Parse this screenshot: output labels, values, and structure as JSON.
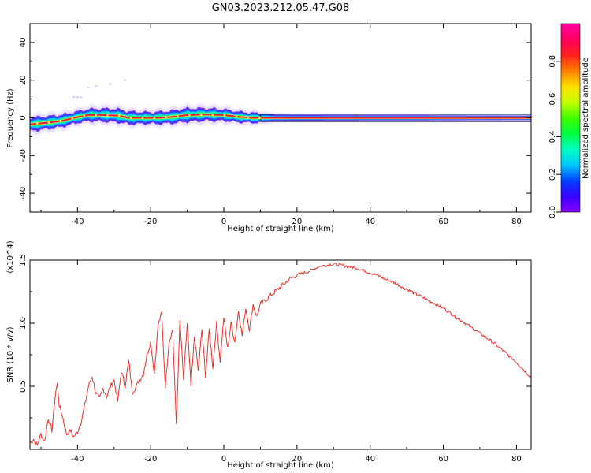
{
  "figure": {
    "title": "GN03.2023.212.05.47.G08"
  },
  "colors": {
    "snr_line": "#e8302c",
    "carrier_core": "#e21b3c",
    "axis": "#000000"
  },
  "chart_data": [
    {
      "type": "heatmap",
      "name": "spectrogram",
      "xlabel": "Height of straight line (km)",
      "ylabel": "Frequency (Hz)",
      "xlim": [
        -53,
        84
      ],
      "ylim": [
        -50,
        50
      ],
      "xticks": [
        -40,
        -20,
        0,
        20,
        40,
        60,
        80
      ],
      "yticks": [
        -40,
        -20,
        0,
        20,
        40
      ],
      "colorbar": {
        "label": "Normalized spectral amplitude",
        "range": [
          0,
          1
        ],
        "ticks": [
          "0.0",
          "0.2",
          "0.4",
          "0.6",
          "0.8"
        ],
        "colormap": [
          "#8800ff",
          "#3a00ff",
          "#0040ff",
          "#00c8ff",
          "#00ffc0",
          "#00ff40",
          "#40ff00",
          "#c8ff00",
          "#ffe000",
          "#ff8000",
          "#ff2020",
          "#ff0060",
          "#ff00a0"
        ]
      },
      "carrier": [
        [
          -53,
          -3.5
        ],
        [
          -48,
          -2.5
        ],
        [
          -44,
          -1.5
        ],
        [
          -41,
          0
        ],
        [
          -37,
          1.5
        ],
        [
          -33,
          1.5
        ],
        [
          -29,
          1.2
        ],
        [
          -26,
          0
        ],
        [
          -22,
          0
        ],
        [
          -18,
          0
        ],
        [
          -14,
          0.5
        ],
        [
          -10,
          1.5
        ],
        [
          -5,
          1.8
        ],
        [
          0,
          1.5
        ],
        [
          4,
          0.5
        ],
        [
          8,
          0
        ],
        [
          84,
          0
        ]
      ],
      "band_halfwidth_hz": [
        [
          -53,
          3.5
        ],
        [
          -40,
          3
        ],
        [
          -30,
          3.5
        ],
        [
          -20,
          3
        ],
        [
          -10,
          3.5
        ],
        [
          0,
          3
        ],
        [
          10,
          2.5
        ],
        [
          14,
          1.5
        ],
        [
          84,
          1.2
        ]
      ],
      "faint_features": [
        [
          -41,
          11
        ],
        [
          -40,
          11
        ],
        [
          -39,
          11
        ],
        [
          -37,
          16
        ],
        [
          -35,
          17
        ],
        [
          -31,
          18
        ],
        [
          -27,
          20
        ]
      ]
    },
    {
      "type": "line",
      "name": "snr",
      "xlabel": "Height of straight line (km)",
      "ylabel": "SNR (10 * v/v)",
      "y_multiplier_label": "(x10^4)",
      "xlim": [
        -53,
        84
      ],
      "ylim": [
        0,
        1.5
      ],
      "xticks": [
        -40,
        -20,
        0,
        20,
        40,
        60,
        80
      ],
      "yticks": [
        "0.5",
        "1.0",
        "1.5"
      ],
      "series": [
        {
          "values_x10e4": [
            [
              -53,
              0.05
            ],
            [
              -52,
              0.08
            ],
            [
              -51,
              0.03
            ],
            [
              -50,
              0.12
            ],
            [
              -49,
              0.06
            ],
            [
              -48,
              0.25
            ],
            [
              -47,
              0.15
            ],
            [
              -46,
              0.45
            ],
            [
              -45.5,
              0.52
            ],
            [
              -45,
              0.35
            ],
            [
              -44,
              0.25
            ],
            [
              -43,
              0.12
            ],
            [
              -42,
              0.15
            ],
            [
              -41,
              0.1
            ],
            [
              -40,
              0.14
            ],
            [
              -39,
              0.22
            ],
            [
              -38,
              0.35
            ],
            [
              -37,
              0.5
            ],
            [
              -36,
              0.58
            ],
            [
              -35,
              0.45
            ],
            [
              -34,
              0.4
            ],
            [
              -33,
              0.48
            ],
            [
              -32,
              0.42
            ],
            [
              -31,
              0.5
            ],
            [
              -30,
              0.55
            ],
            [
              -29,
              0.38
            ],
            [
              -28,
              0.62
            ],
            [
              -27,
              0.5
            ],
            [
              -26,
              0.7
            ],
            [
              -25,
              0.45
            ],
            [
              -24,
              0.5
            ],
            [
              -23,
              0.55
            ],
            [
              -22,
              0.6
            ],
            [
              -21,
              0.75
            ],
            [
              -20,
              0.85
            ],
            [
              -19,
              0.6
            ],
            [
              -18,
              0.98
            ],
            [
              -17,
              1.08
            ],
            [
              -16,
              0.5
            ],
            [
              -15,
              0.85
            ],
            [
              -14,
              0.95
            ],
            [
              -13,
              0.2
            ],
            [
              -12,
              1.02
            ],
            [
              -11,
              0.55
            ],
            [
              -10,
              1.0
            ],
            [
              -9,
              0.5
            ],
            [
              -8,
              0.9
            ],
            [
              -7,
              0.62
            ],
            [
              -6,
              0.95
            ],
            [
              -5,
              0.58
            ],
            [
              -4,
              0.95
            ],
            [
              -3,
              0.65
            ],
            [
              -2,
              1.0
            ],
            [
              -1,
              0.7
            ],
            [
              0,
              1.05
            ],
            [
              1,
              0.8
            ],
            [
              2,
              1.0
            ],
            [
              3,
              0.85
            ],
            [
              4,
              1.1
            ],
            [
              5,
              0.9
            ],
            [
              6,
              1.12
            ],
            [
              7,
              0.95
            ],
            [
              8,
              1.15
            ],
            [
              9,
              1.05
            ],
            [
              10,
              1.15
            ],
            [
              12,
              1.2
            ],
            [
              14,
              1.25
            ],
            [
              16,
              1.3
            ],
            [
              18,
              1.35
            ],
            [
              20,
              1.38
            ],
            [
              22,
              1.4
            ],
            [
              24,
              1.42
            ],
            [
              26,
              1.45
            ],
            [
              28,
              1.46
            ],
            [
              30,
              1.47
            ],
            [
              32,
              1.46
            ],
            [
              34,
              1.45
            ],
            [
              36,
              1.44
            ],
            [
              38,
              1.42
            ],
            [
              40,
              1.4
            ],
            [
              42,
              1.38
            ],
            [
              44,
              1.35
            ],
            [
              46,
              1.33
            ],
            [
              48,
              1.3
            ],
            [
              50,
              1.27
            ],
            [
              52,
              1.24
            ],
            [
              54,
              1.21
            ],
            [
              56,
              1.18
            ],
            [
              58,
              1.15
            ],
            [
              60,
              1.12
            ],
            [
              62,
              1.08
            ],
            [
              64,
              1.04
            ],
            [
              66,
              1.0
            ],
            [
              68,
              0.96
            ],
            [
              70,
              0.92
            ],
            [
              72,
              0.88
            ],
            [
              74,
              0.84
            ],
            [
              76,
              0.79
            ],
            [
              78,
              0.74
            ],
            [
              80,
              0.69
            ],
            [
              82,
              0.63
            ],
            [
              84,
              0.57
            ]
          ]
        }
      ]
    }
  ]
}
